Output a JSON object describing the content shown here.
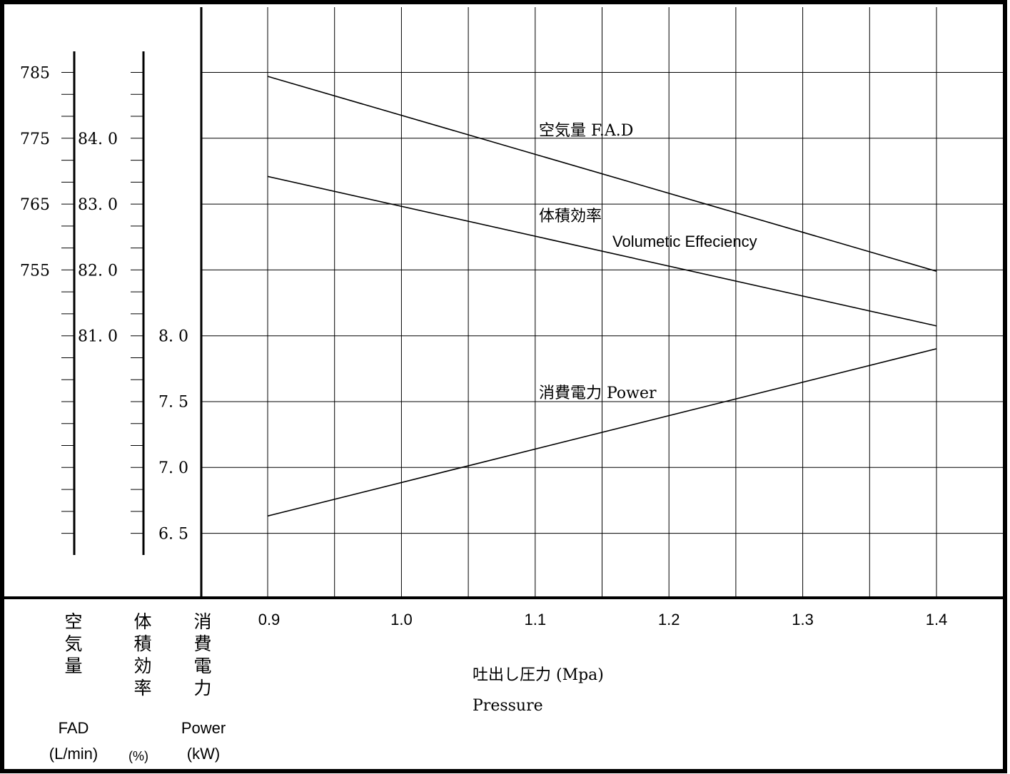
{
  "chart_data": {
    "type": "line",
    "x": [
      0.9,
      1.4
    ],
    "x_ticks": [
      "0.9",
      "1.0",
      "1.1",
      "1.2",
      "1.3",
      "1.4"
    ],
    "xlim": [
      0.9,
      1.4
    ],
    "grid": true,
    "xlabel": {
      "ja": "吐出し圧力 (Mpa)",
      "en": "Pressure"
    },
    "axes": {
      "fad": {
        "label_ja": [
          "空",
          "気",
          "量"
        ],
        "label_en": "FAD",
        "unit": "(L/min)",
        "ticks": [
          "785",
          "775",
          "765",
          "755"
        ],
        "range": [
          733.3,
          785
        ]
      },
      "vol_eff": {
        "label_ja": [
          "体",
          "積",
          "効",
          "率"
        ],
        "unit": "(%)",
        "ticks": [
          "84.0",
          "83.0",
          "82.0",
          "81.0"
        ],
        "range": [
          78.0,
          85.0
        ]
      },
      "power": {
        "label_ja": [
          "消",
          "費",
          "電",
          "力"
        ],
        "label_en": "Power",
        "unit": "(kW)",
        "ticks": [
          "8.0",
          "7.5",
          "7.0",
          "6.5"
        ],
        "range": [
          6.5,
          8.0
        ]
      }
    },
    "series": [
      {
        "name": "空気量  F.A.D",
        "axis": "fad",
        "values": [
          784.4,
          754.8
        ]
      },
      {
        "name_ja": "体積効率",
        "name_en": "Volumetic Effeciency",
        "axis": "vol_eff",
        "values": [
          83.42,
          81.15
        ]
      },
      {
        "name": "消費電力  Power",
        "axis": "power",
        "values": [
          6.63,
          7.9
        ]
      }
    ]
  }
}
